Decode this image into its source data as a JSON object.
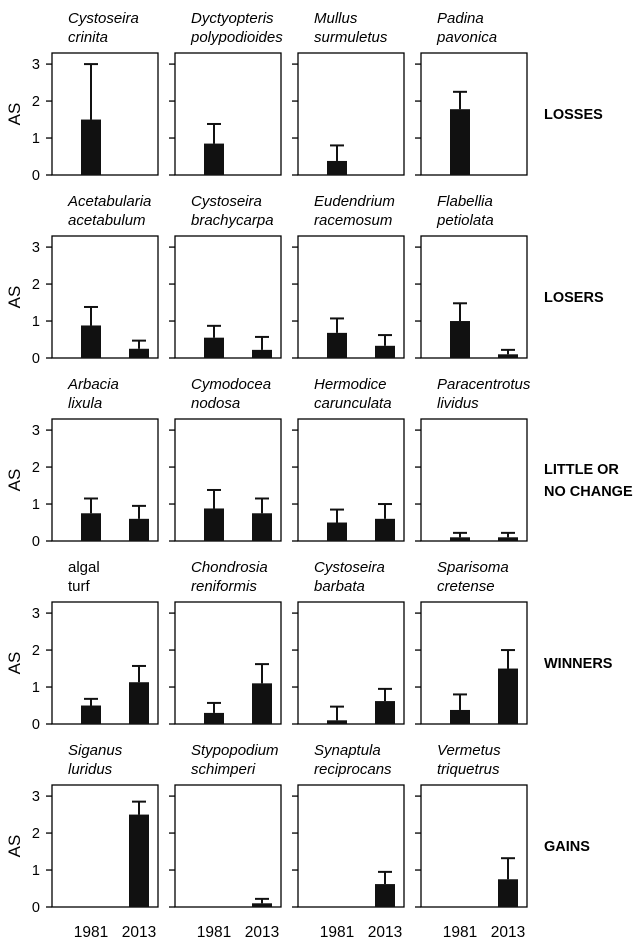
{
  "chart_data": {
    "type": "bar",
    "ylabel": "AS",
    "ylim": [
      0,
      3.3
    ],
    "yticks": [
      0,
      1,
      2,
      3
    ],
    "categories": [
      "1981",
      "2013"
    ],
    "rows": [
      {
        "group": "LOSSES",
        "panels": [
          {
            "species": [
              "Cystoseira",
              "crinita"
            ],
            "italic": true,
            "values": [
              1.5,
              0
            ],
            "errors": [
              3.0,
              null
            ]
          },
          {
            "species": [
              "Dyctyopteris",
              "polypodioides"
            ],
            "italic": true,
            "values": [
              0.85,
              0
            ],
            "errors": [
              1.38,
              null
            ]
          },
          {
            "species": [
              "Mullus",
              "surmuletus"
            ],
            "italic": true,
            "values": [
              0.38,
              0
            ],
            "errors": [
              0.8,
              null
            ]
          },
          {
            "species": [
              "Padina",
              "pavonica"
            ],
            "italic": true,
            "values": [
              1.78,
              0
            ],
            "errors": [
              2.25,
              null
            ]
          }
        ]
      },
      {
        "group": "LOSERS",
        "panels": [
          {
            "species": [
              "Acetabularia",
              "acetabulum"
            ],
            "italic": true,
            "values": [
              0.88,
              0.25
            ],
            "errors": [
              1.38,
              0.47
            ]
          },
          {
            "species": [
              "Cystoseira",
              "brachycarpa"
            ],
            "italic": true,
            "values": [
              0.55,
              0.22
            ],
            "errors": [
              0.87,
              0.57
            ]
          },
          {
            "species": [
              "Eudendrium",
              "racemosum"
            ],
            "italic": true,
            "values": [
              0.68,
              0.33
            ],
            "errors": [
              1.07,
              0.62
            ]
          },
          {
            "species": [
              "Flabellia",
              "petiolata"
            ],
            "italic": true,
            "values": [
              1.0,
              0.1
            ],
            "errors": [
              1.48,
              0.22
            ]
          }
        ]
      },
      {
        "group": "LITTLE OR\nNO CHANGE",
        "panels": [
          {
            "species": [
              "Arbacia",
              "lixula"
            ],
            "italic": true,
            "values": [
              0.75,
              0.6
            ],
            "errors": [
              1.15,
              0.95
            ]
          },
          {
            "species": [
              "Cymodocea",
              "nodosa"
            ],
            "italic": true,
            "values": [
              0.88,
              0.75
            ],
            "errors": [
              1.38,
              1.15
            ]
          },
          {
            "species": [
              "Hermodice",
              "carunculata"
            ],
            "italic": true,
            "values": [
              0.5,
              0.6
            ],
            "errors": [
              0.85,
              1.0
            ]
          },
          {
            "species": [
              "Paracentrotus",
              "lividus"
            ],
            "italic": true,
            "values": [
              0.1,
              0.1
            ],
            "errors": [
              0.22,
              0.22
            ]
          }
        ]
      },
      {
        "group": "WINNERS",
        "panels": [
          {
            "species": [
              "algal",
              "turf"
            ],
            "italic": false,
            "values": [
              0.5,
              1.13
            ],
            "errors": [
              0.68,
              1.57
            ]
          },
          {
            "species": [
              "Chondrosia",
              "reniformis"
            ],
            "italic": true,
            "values": [
              0.3,
              1.1
            ],
            "errors": [
              0.57,
              1.62
            ]
          },
          {
            "species": [
              "Cystoseira",
              "barbata"
            ],
            "italic": true,
            "values": [
              0.1,
              0.62
            ],
            "errors": [
              0.47,
              0.95
            ]
          },
          {
            "species": [
              "Sparisoma",
              "cretense"
            ],
            "italic": true,
            "values": [
              0.38,
              1.5
            ],
            "errors": [
              0.8,
              2.0
            ]
          }
        ]
      },
      {
        "group": "GAINS",
        "panels": [
          {
            "species": [
              "Siganus",
              "luridus"
            ],
            "italic": true,
            "values": [
              0,
              2.5
            ],
            "errors": [
              null,
              2.85
            ]
          },
          {
            "species": [
              "Stypopodium",
              "schimperi"
            ],
            "italic": true,
            "values": [
              0,
              0.1
            ],
            "errors": [
              null,
              0.22
            ]
          },
          {
            "species": [
              "Synaptula",
              "reciprocans"
            ],
            "italic": true,
            "values": [
              0,
              0.62
            ],
            "errors": [
              null,
              0.95
            ]
          },
          {
            "species": [
              "Vermetus",
              "triquetrus"
            ],
            "italic": true,
            "values": [
              0,
              0.75
            ],
            "errors": [
              null,
              1.32
            ]
          }
        ]
      }
    ]
  }
}
